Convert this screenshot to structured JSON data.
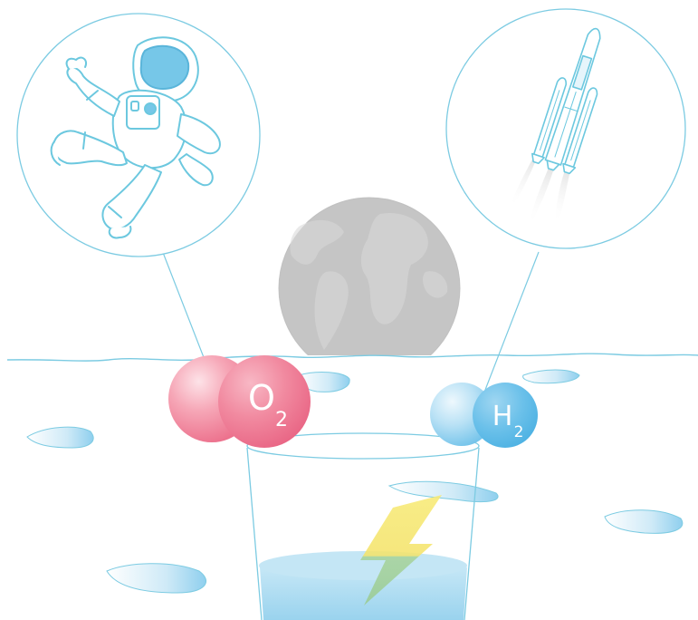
{
  "molecules": {
    "oxygen": {
      "symbol": "O",
      "subscript": "2"
    },
    "hydrogen": {
      "symbol": "H",
      "subscript": "2"
    }
  },
  "icons": {
    "left_circle": "astronaut-icon",
    "right_circle": "rocket-icon",
    "center": "globe-icon",
    "glass": "water-glass-icon",
    "bolt": "lightning-bolt-icon"
  },
  "colors": {
    "line": "#6cc8df",
    "astronaut_visor": "#76c7e8",
    "globe": "#cfcfcf",
    "oxygen_main": "#ef7f97",
    "oxygen_light": "#f7b4c1",
    "hydrogen_main": "#63bce6",
    "hydrogen_light": "#bde4f6",
    "water": "#a7d9f0",
    "ice": "#bfe4f5",
    "bolt": "#f5e46a",
    "bolt_lower": "#9ecf9a"
  }
}
